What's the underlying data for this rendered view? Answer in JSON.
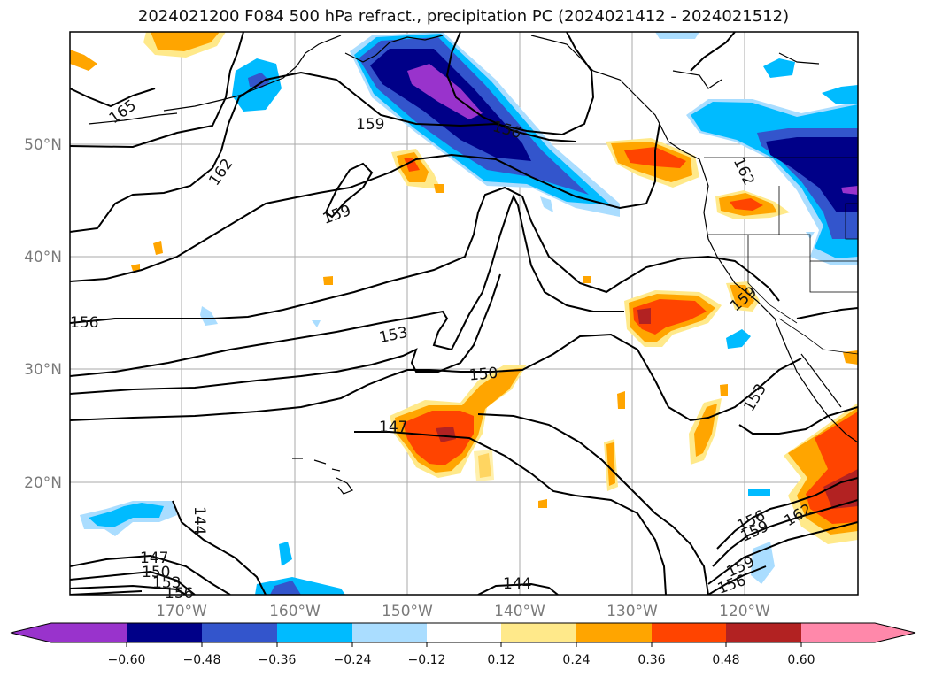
{
  "title": "2024021200 F084 500 hPa refract., precipitation PC (2024021412 - 2024021512)",
  "latitude_labels": [
    "50°N",
    "40°N",
    "30°N",
    "20°N"
  ],
  "longitude_labels": [
    "170°W",
    "160°W",
    "150°W",
    "140°W",
    "130°W",
    "120°W"
  ],
  "colorbar": {
    "tick_labels": [
      "−0.60",
      "−0.48",
      "−0.36",
      "−0.24",
      "−0.12",
      "0.12",
      "0.24",
      "0.36",
      "0.48",
      "0.60"
    ],
    "colors": [
      "#9933cc",
      "#000088",
      "#3355cc",
      "#00bbff",
      "#aaddff",
      "#ffffff",
      "#ffe98a",
      "#ffa500",
      "#ff4400",
      "#b22222",
      "#ff88aa"
    ]
  },
  "contour_labels": [
    "165",
    "162",
    "159",
    "159",
    "156",
    "162",
    "156",
    "153",
    "150",
    "147",
    "159",
    "153",
    "144",
    "147",
    "150",
    "153",
    "156",
    "144",
    "156",
    "159",
    "162",
    "159",
    "156"
  ],
  "fill_colors": {
    "neg_light": "#aaddff",
    "neg_cyan": "#00bbff",
    "neg_blue": "#3355cc",
    "neg_navy": "#000088",
    "neg_purple": "#9933cc",
    "pos_yellow": "#ffe98a",
    "pos_orange": "#ffa500",
    "pos_red": "#ff4400",
    "pos_darkred": "#b22222"
  }
}
